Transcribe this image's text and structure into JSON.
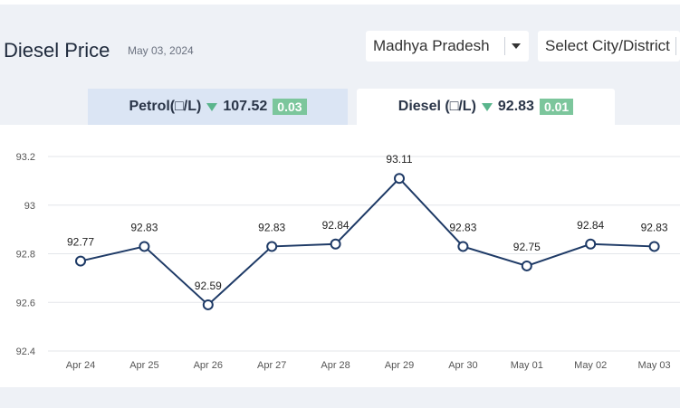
{
  "header": {
    "title": "Diesel Price",
    "date": "May 03, 2024",
    "state_select": "Madhya Pradesh",
    "city_select": "Select City/District"
  },
  "tabs": [
    {
      "label": "Petrol(□/L)",
      "price": "107.52",
      "change": "0.03",
      "trend": "down"
    },
    {
      "label": "Diesel (□/L)",
      "price": "92.83",
      "change": "0.01",
      "trend": "down",
      "active": true
    }
  ],
  "colors": {
    "line": "#1e3a66",
    "badge": "#7cc69c",
    "trend_down": "#5ab58c",
    "active_tab": "#ffffff",
    "inactive_tab": "#dbe5f4"
  },
  "chart_data": {
    "type": "line",
    "categories": [
      "Apr 24",
      "Apr 25",
      "Apr 26",
      "Apr 27",
      "Apr 28",
      "Apr 29",
      "Apr 30",
      "May 01",
      "May 02",
      "May 03"
    ],
    "values": [
      92.77,
      92.83,
      92.59,
      92.83,
      92.84,
      93.11,
      92.83,
      92.75,
      92.84,
      92.83
    ],
    "data_labels": [
      "92.77",
      "92.83",
      "92.59",
      "92.83",
      "92.84",
      "93.11",
      "92.83",
      "92.75",
      "92.84",
      "92.83"
    ],
    "y_ticks": [
      "92.4",
      "92.6",
      "92.8",
      "93",
      "93.2"
    ],
    "ylim": [
      92.4,
      93.2
    ],
    "grid": true,
    "markers": "hollow-circle"
  }
}
